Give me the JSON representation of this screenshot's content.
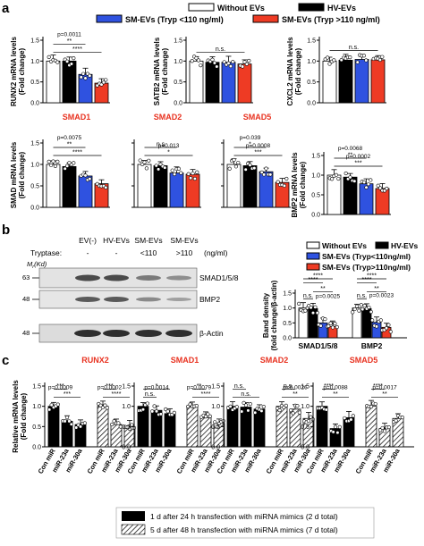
{
  "panel_labels": {
    "a": "a",
    "b": "b",
    "c": "c"
  },
  "legend_a": [
    {
      "label": "Without EVs",
      "color": "#ffffff"
    },
    {
      "label": "HV-EVs",
      "color": "#000000"
    },
    {
      "label": "SM-EVs (Tryp <110 ng/ml)",
      "color": "#2f52e0"
    },
    {
      "label": "SM-EVs (Tryp >110 ng/ml)",
      "color": "#ee3b24"
    }
  ],
  "legend_b": [
    {
      "label": "Without EVs",
      "color": "#ffffff"
    },
    {
      "label": "HV-EVs",
      "color": "#000000"
    },
    {
      "label": "SM-EVs (Tryp<110ng/ml)",
      "color": "#2f52e0"
    },
    {
      "label": "SM-EVs (Tryp>110ng/ml)",
      "color": "#ee3b24"
    }
  ],
  "legend_c": [
    {
      "label": "1 d after 24 h transfection with miRNA mimics (2 d total)",
      "fill": "solid"
    },
    {
      "label": "5 d after 48 h transfection with miRNA mimics (7 d total)",
      "fill": "hatched"
    }
  ],
  "blot": {
    "tryptase_label": "Tryptase:",
    "mr_label": "M",
    "mr_sub": "r",
    "mr_unit": "(Kd)",
    "lane_headers": [
      "EV(-)",
      "HV-EVs",
      "SM-EVs",
      "SM-EVs"
    ],
    "tryptase_values": [
      "-",
      "-",
      "<110",
      ">110"
    ],
    "tryptase_unit": "(ng/ml)",
    "bands": [
      {
        "name": "SMAD1/5/8",
        "mw": "63"
      },
      {
        "name": "BMP2",
        "mw": "48"
      },
      {
        "name": "β-Actin",
        "mw": "48"
      }
    ]
  },
  "chart_data": [
    {
      "id": "a-runx2",
      "type": "bar",
      "ylabel": "RUNX2 mRNA levels",
      "ylabel2": "(Fold change)",
      "title": "",
      "ylim": [
        0,
        1.5
      ],
      "yticks": [
        "0.0",
        "0.5",
        "1.0",
        "1.5"
      ],
      "values": [
        1.0,
        1.0,
        0.68,
        0.47
      ],
      "sig": [
        {
          "text": "****",
          "from": 0,
          "to": 3
        },
        {
          "text": "p=0.0011",
          "from": 0,
          "to": 2
        },
        {
          "text": "**",
          "from": 0,
          "to": 2
        }
      ]
    },
    {
      "id": "a-satb2",
      "type": "bar",
      "ylabel": "SATB2 mRNA levels",
      "ylabel2": "(Fold change)",
      "title": "",
      "ylim": [
        0,
        1.5
      ],
      "yticks": [
        "0.0",
        "0.5",
        "1.0",
        "1.5"
      ],
      "values": [
        1.0,
        0.97,
        0.97,
        0.93
      ],
      "sig": [
        {
          "text": "n.s.",
          "from": 0,
          "to": 3
        }
      ]
    },
    {
      "id": "a-cxcl2",
      "type": "bar",
      "ylabel": "CXCL2 mRNA levels",
      "ylabel2": "(Fold change)",
      "title": "",
      "ylim": [
        0,
        1.5
      ],
      "yticks": [
        "0.0",
        "0.5",
        "1.0",
        "1.5"
      ],
      "values": [
        1.0,
        1.02,
        1.04,
        1.03
      ],
      "sig": [
        {
          "text": "n.s.",
          "from": 0,
          "to": 3
        }
      ]
    },
    {
      "id": "a-smad1",
      "type": "bar",
      "ylabel": "SMAD mRNA levels",
      "ylabel2": "(Fold change)",
      "title": "SMAD1",
      "ylim": [
        0,
        1.5
      ],
      "yticks": [
        "0.0",
        "0.5",
        "1.0",
        "1.5"
      ],
      "values": [
        1.0,
        0.95,
        0.73,
        0.55
      ],
      "sig": [
        {
          "text": "****",
          "from": 0,
          "to": 3
        },
        {
          "text": "p=0.0075",
          "from": 0,
          "to": 2
        },
        {
          "text": "**",
          "from": 0,
          "to": 2
        }
      ]
    },
    {
      "id": "a-smad2",
      "type": "bar",
      "ylabel": "",
      "ylabel2": "",
      "title": "SMAD2",
      "ylim": [
        0,
        1.5
      ],
      "yticks": [],
      "values": [
        1.0,
        0.97,
        0.8,
        0.77
      ],
      "sig": [
        {
          "text": "p=0.013",
          "from": 0,
          "to": 3
        },
        {
          "text": "*",
          "from": 0,
          "to": 3
        },
        {
          "text": "n.s",
          "from": 0,
          "to": 2
        }
      ]
    },
    {
      "id": "a-smad5",
      "type": "bar",
      "ylabel": "",
      "ylabel2": "",
      "title": "SMAD5",
      "ylim": [
        0,
        1.5
      ],
      "yticks": [],
      "values": [
        1.0,
        0.97,
        0.83,
        0.58
      ],
      "sig": [
        {
          "text": "p=0.0008",
          "from": 0,
          "to": 3
        },
        {
          "text": "***",
          "from": 0,
          "to": 3
        },
        {
          "text": "p=0.039",
          "from": 0,
          "to": 2
        },
        {
          "text": "*",
          "from": 0,
          "to": 2
        }
      ]
    },
    {
      "id": "a-bmp2",
      "type": "bar",
      "ylabel": "BMP2 mRNA levels",
      "ylabel2": "(Fold change)",
      "title": "",
      "ylim": [
        0,
        1.5
      ],
      "yticks": [
        "0.0",
        "0.5",
        "1.0",
        "1.5"
      ],
      "values": [
        1.0,
        0.95,
        0.78,
        0.66
      ],
      "sig": [
        {
          "text": "p=0.0002",
          "from": 0,
          "to": 3
        },
        {
          "text": "***",
          "from": 0,
          "to": 3
        },
        {
          "text": "p=0.0068",
          "from": 0,
          "to": 2
        },
        {
          "text": "**",
          "from": 0,
          "to": 2
        }
      ]
    },
    {
      "id": "b-density",
      "type": "bar",
      "ylabel": "Band density",
      "ylabel2": "(fold change/β-actin)",
      "title": "",
      "ylim": [
        0,
        1.5
      ],
      "yticks": [
        "0.0",
        "0.5",
        "1.0",
        "1.5"
      ],
      "categories": [
        "SMAD1/5/8",
        "BMP2"
      ],
      "series": [
        {
          "name": "Without EVs",
          "values": [
            1.0,
            1.0
          ]
        },
        {
          "name": "HV-EVs",
          "values": [
            0.98,
            0.98
          ]
        },
        {
          "name": "SM-EVs (Tryp<110ng/ml)",
          "values": [
            0.5,
            0.52
          ]
        },
        {
          "name": "SM-EVs (Tryp>110ng/ml)",
          "values": [
            0.38,
            0.35
          ]
        }
      ],
      "sig": [
        {
          "text": "n.s.",
          "group": 0,
          "from": 0,
          "to": 1
        },
        {
          "text": "p=0.0025",
          "group": 0,
          "from": 2,
          "to": 3
        },
        {
          "text": "**",
          "group": 0,
          "from": 1,
          "to": 3
        },
        {
          "text": "****",
          "group": 0,
          "from": 0,
          "to": 2
        },
        {
          "text": "****",
          "group": 0,
          "from": 0,
          "to": 3
        },
        {
          "text": "n.s.",
          "group": 1,
          "from": 0,
          "to": 1
        },
        {
          "text": "p=0.0023",
          "group": 1,
          "from": 2,
          "to": 3
        },
        {
          "text": "**",
          "group": 1,
          "from": 1,
          "to": 3
        },
        {
          "text": "****",
          "group": 1,
          "from": 0,
          "to": 2
        },
        {
          "text": "****",
          "group": 1,
          "from": 0,
          "to": 3
        }
      ]
    },
    {
      "id": "c-runx2",
      "type": "bar",
      "ylabel": "Relative mRNA levels",
      "ylabel2": "(Fold change)",
      "title": "RUNX2",
      "ylim": [
        0,
        1.5
      ],
      "yticks": [
        "0.0",
        "0.5",
        "1.0",
        "1.5"
      ],
      "categories": [
        "Con miR",
        "miR-23a",
        "miR-30a"
      ],
      "series": [
        {
          "name": "",
          "fill": "solid",
          "values": [
            1.0,
            0.63,
            0.55
          ]
        },
        {
          "name": "",
          "fill": "hatched",
          "values": [
            1.0,
            0.55,
            0.5
          ]
        }
      ],
      "sig": [
        {
          "text": "p=0.0009",
          "set": 0,
          "from": 0,
          "to": 1
        },
        {
          "text": "***",
          "set": 0,
          "from": 0,
          "to": 2
        },
        {
          "text": "***",
          "set": 0,
          "from": 0,
          "to": 1
        },
        {
          "text": "p=0.0002",
          "set": 1,
          "from": 0,
          "to": 1
        },
        {
          "text": "****",
          "set": 1,
          "from": 0,
          "to": 2
        },
        {
          "text": "***",
          "set": 1,
          "from": 0,
          "to": 1
        }
      ]
    },
    {
      "id": "c-smad1",
      "type": "bar",
      "ylabel": "",
      "ylabel2": "",
      "title": "SMAD1",
      "ylim": [
        0,
        1.5
      ],
      "yticks": [
        "0.0",
        "0.5",
        "1.0",
        "1.5"
      ],
      "categories": [
        "Con miR",
        "miR-23a",
        "miR-30a"
      ],
      "series": [
        {
          "name": "",
          "fill": "solid",
          "values": [
            1.0,
            0.9,
            0.82
          ]
        },
        {
          "name": "",
          "fill": "hatched",
          "values": [
            1.0,
            0.72,
            0.58
          ]
        }
      ],
      "sig": [
        {
          "text": "p=0.0014",
          "set": 0,
          "from": 0,
          "to": 2
        },
        {
          "text": "n.s.",
          "set": 0,
          "from": 0,
          "to": 1
        },
        {
          "text": "*",
          "set": 0,
          "from": 0,
          "to": 2
        },
        {
          "text": "p=0.0079",
          "set": 1,
          "from": 0,
          "to": 1
        },
        {
          "text": "****",
          "set": 1,
          "from": 0,
          "to": 2
        },
        {
          "text": "**",
          "set": 1,
          "from": 0,
          "to": 1
        }
      ]
    },
    {
      "id": "c-smad2",
      "type": "bar",
      "ylabel": "",
      "ylabel2": "",
      "title": "SMAD2",
      "ylim": [
        0,
        1.5
      ],
      "yticks": [
        "0.0",
        "0.5",
        "1.0",
        "1.5"
      ],
      "categories": [
        "Con miR",
        "miR-23a",
        "miR-30a"
      ],
      "series": [
        {
          "name": "",
          "fill": "solid",
          "values": [
            1.0,
            0.98,
            0.93
          ]
        },
        {
          "name": "",
          "fill": "hatched",
          "values": [
            1.0,
            0.93,
            0.7
          ]
        }
      ],
      "sig": [
        {
          "text": "n.s.",
          "set": 0,
          "from": 0,
          "to": 2
        },
        {
          "text": "n.s.",
          "set": 0,
          "from": 0,
          "to": 1
        },
        {
          "text": "p=0.0026",
          "set": 1,
          "from": 0,
          "to": 2
        },
        {
          "text": "**",
          "set": 1,
          "from": 0,
          "to": 2
        },
        {
          "text": "n.s.",
          "set": 1,
          "from": 0,
          "to": 1
        }
      ]
    },
    {
      "id": "c-smad5",
      "type": "bar",
      "ylabel": "",
      "ylabel2": "",
      "title": "SMAD5",
      "ylim": [
        0,
        1.5
      ],
      "yticks": [
        "0.0",
        "0.5",
        "1.0",
        "1.5"
      ],
      "categories": [
        "Con miR",
        "miR-23a",
        "miR-30a"
      ],
      "series": [
        {
          "name": "",
          "fill": "solid",
          "values": [
            1.0,
            0.45,
            0.72
          ]
        },
        {
          "name": "",
          "fill": "hatched",
          "values": [
            1.0,
            0.45,
            0.7
          ]
        }
      ],
      "sig": [
        {
          "text": "p=0.0088",
          "set": 0,
          "from": 0,
          "to": 2
        },
        {
          "text": "**",
          "set": 0,
          "from": 0,
          "to": 2
        },
        {
          "text": "****",
          "set": 0,
          "from": 0,
          "to": 1
        },
        {
          "text": "p=0.0017",
          "set": 1,
          "from": 0,
          "to": 2
        },
        {
          "text": "**",
          "set": 1,
          "from": 0,
          "to": 2
        },
        {
          "text": "****",
          "set": 1,
          "from": 0,
          "to": 1
        }
      ]
    }
  ]
}
